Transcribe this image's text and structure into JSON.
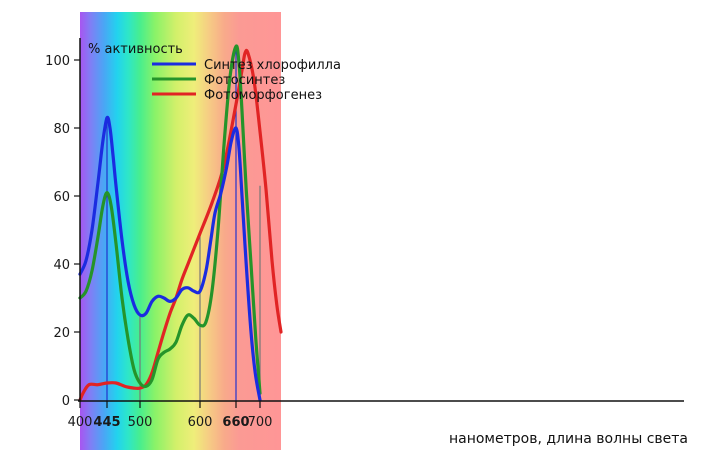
{
  "chart_data": {
    "type": "line",
    "title": "% активность",
    "xlabel": "нанометров, длина волны света",
    "xlim": [
      400,
      735
    ],
    "ylim": [
      0,
      100
    ],
    "x_ticks": [
      {
        "label": "400",
        "value": 400,
        "highlight": false
      },
      {
        "label": "445",
        "value": 445,
        "highlight": true
      },
      {
        "label": "500",
        "value": 500,
        "highlight": false
      },
      {
        "label": "600",
        "value": 600,
        "highlight": false
      },
      {
        "label": "660",
        "value": 660,
        "highlight": true
      },
      {
        "label": "700",
        "value": 700,
        "highlight": false
      }
    ],
    "y_ticks": [
      {
        "label": "0",
        "value": 0
      },
      {
        "label": "20",
        "value": 20
      },
      {
        "label": "40",
        "value": 40
      },
      {
        "label": "60",
        "value": 60
      },
      {
        "label": "80",
        "value": 80
      },
      {
        "label": "100",
        "value": 100
      }
    ],
    "highlight_color": "#2233cc",
    "background_gradient": [
      {
        "value": 400,
        "color": "#a855f0"
      },
      {
        "value": 418,
        "color": "#7f7ff5"
      },
      {
        "value": 440,
        "color": "#4aa6f5"
      },
      {
        "value": 462,
        "color": "#22d3ee"
      },
      {
        "value": 480,
        "color": "#2ee6c8"
      },
      {
        "value": 500,
        "color": "#48ee8e"
      },
      {
        "value": 525,
        "color": "#8af268"
      },
      {
        "value": 560,
        "color": "#d2f06a"
      },
      {
        "value": 590,
        "color": "#efee7a"
      },
      {
        "value": 615,
        "color": "#f6cc84"
      },
      {
        "value": 640,
        "color": "#f8ab8a"
      },
      {
        "value": 665,
        "color": "#fb9a94"
      },
      {
        "value": 735,
        "color": "#ff9696"
      }
    ],
    "reference_lines": [
      {
        "x": 445,
        "top": 83,
        "color": "#2233cc"
      },
      {
        "x": 500,
        "top": 25,
        "color": "#777777"
      },
      {
        "x": 600,
        "top": 49,
        "color": "#777777"
      },
      {
        "x": 660,
        "top": 104,
        "color": "#2233cc"
      },
      {
        "x": 700,
        "top": 63,
        "color": "#777777"
      }
    ],
    "series": [
      {
        "name": "Синтез хлорофилла",
        "color": "#1b2ce0",
        "points": [
          [
            400,
            37
          ],
          [
            410,
            41
          ],
          [
            420,
            50
          ],
          [
            430,
            64
          ],
          [
            438,
            76
          ],
          [
            445,
            83
          ],
          [
            450,
            80
          ],
          [
            455,
            72
          ],
          [
            460,
            63
          ],
          [
            470,
            47
          ],
          [
            480,
            35
          ],
          [
            490,
            28
          ],
          [
            500,
            25
          ],
          [
            510,
            25.5
          ],
          [
            520,
            29
          ],
          [
            530,
            30.5
          ],
          [
            540,
            30
          ],
          [
            550,
            29
          ],
          [
            560,
            30
          ],
          [
            570,
            32.5
          ],
          [
            580,
            33
          ],
          [
            590,
            32
          ],
          [
            600,
            32
          ],
          [
            610,
            38
          ],
          [
            618,
            47
          ],
          [
            625,
            55
          ],
          [
            635,
            61
          ],
          [
            645,
            69
          ],
          [
            652,
            76
          ],
          [
            660,
            80
          ],
          [
            665,
            74
          ],
          [
            670,
            60
          ],
          [
            677,
            40
          ],
          [
            685,
            20
          ],
          [
            692,
            8
          ],
          [
            700,
            0
          ]
        ]
      },
      {
        "name": "Фотосинтез",
        "color": "#25942a",
        "points": [
          [
            400,
            30
          ],
          [
            410,
            32
          ],
          [
            420,
            38
          ],
          [
            430,
            48
          ],
          [
            438,
            57
          ],
          [
            445,
            61
          ],
          [
            452,
            57
          ],
          [
            460,
            46
          ],
          [
            470,
            30
          ],
          [
            480,
            18
          ],
          [
            490,
            9
          ],
          [
            500,
            5
          ],
          [
            510,
            4
          ],
          [
            520,
            6
          ],
          [
            530,
            12
          ],
          [
            540,
            14
          ],
          [
            550,
            15
          ],
          [
            560,
            17
          ],
          [
            570,
            22
          ],
          [
            580,
            25
          ],
          [
            590,
            24
          ],
          [
            600,
            22
          ],
          [
            610,
            23
          ],
          [
            620,
            32
          ],
          [
            630,
            50
          ],
          [
            640,
            75
          ],
          [
            650,
            95
          ],
          [
            660,
            104
          ],
          [
            665,
            99
          ],
          [
            670,
            85
          ],
          [
            677,
            62
          ],
          [
            685,
            40
          ],
          [
            693,
            18
          ],
          [
            700,
            2
          ]
        ]
      },
      {
        "name": "Фотоморфогенез",
        "color": "#e12424",
        "points": [
          [
            400,
            0
          ],
          [
            405,
            2
          ],
          [
            415,
            4.5
          ],
          [
            430,
            4.5
          ],
          [
            445,
            5
          ],
          [
            460,
            5
          ],
          [
            475,
            4
          ],
          [
            490,
            3.5
          ],
          [
            500,
            3.5
          ],
          [
            510,
            4.5
          ],
          [
            520,
            8
          ],
          [
            530,
            14
          ],
          [
            540,
            20
          ],
          [
            550,
            25.5
          ],
          [
            560,
            30
          ],
          [
            570,
            35.5
          ],
          [
            580,
            40
          ],
          [
            590,
            44.5
          ],
          [
            600,
            49
          ],
          [
            620,
            58
          ],
          [
            640,
            69
          ],
          [
            660,
            87
          ],
          [
            670,
            97
          ],
          [
            675,
            102
          ],
          [
            680,
            102
          ],
          [
            690,
            94
          ],
          [
            700,
            79
          ],
          [
            710,
            62
          ],
          [
            720,
            41
          ],
          [
            728,
            28
          ],
          [
            735,
            20
          ]
        ]
      }
    ]
  }
}
